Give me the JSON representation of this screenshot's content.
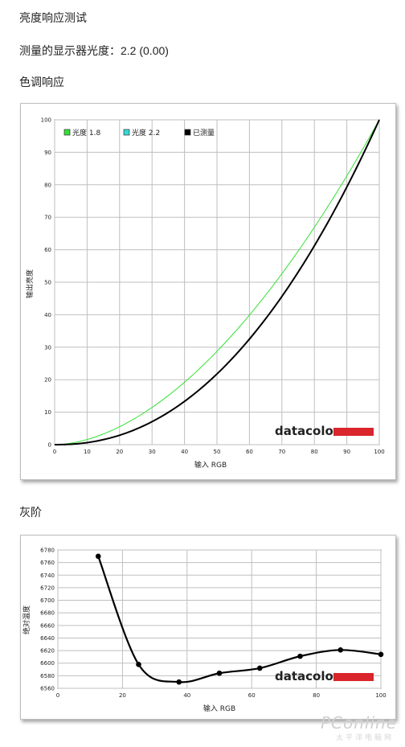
{
  "texts": {
    "title": "亮度响应测试",
    "measured_gamma": "测量的显示器光度：2.2 (0.00)",
    "tone_section": "色调响应",
    "gray_section": "灰阶"
  },
  "logo": {
    "text": "datacolor",
    "bar_color": "#d9252b"
  },
  "watermark": {
    "main": "PConline",
    "sub": "太平洋电脑网"
  },
  "chart_data": [
    {
      "type": "line",
      "xlabel": "输入 RGB",
      "ylabel": "输出亮度",
      "xlim": [
        0,
        100
      ],
      "ylim": [
        0,
        100
      ],
      "x_ticks": [
        0,
        10,
        20,
        30,
        40,
        50,
        60,
        70,
        80,
        90,
        100
      ],
      "y_ticks": [
        0,
        10,
        20,
        30,
        40,
        50,
        60,
        70,
        80,
        90,
        100
      ],
      "grid": true,
      "legend_position": "top-left",
      "series": [
        {
          "name": "光度 1.8",
          "color": "#35e035",
          "gamma": 1.8
        },
        {
          "name": "光度 2.2",
          "color": "#38d8d8",
          "gamma": 2.2
        },
        {
          "name": "已测量",
          "color": "#000000",
          "gamma": 2.2
        }
      ]
    },
    {
      "type": "line",
      "xlabel": "输入 RGB",
      "ylabel": "绝对温度",
      "xlim": [
        0,
        100
      ],
      "ylim": [
        6560,
        6780
      ],
      "x_ticks": [
        0,
        20,
        40,
        60,
        80,
        100
      ],
      "y_ticks": [
        6560,
        6580,
        6600,
        6620,
        6640,
        6660,
        6680,
        6700,
        6720,
        6740,
        6760,
        6780
      ],
      "grid": true,
      "series": [
        {
          "color": "#000000",
          "x": [
            12.5,
            25,
            37.5,
            50,
            62.5,
            75,
            87.5,
            100
          ],
          "y": [
            6770,
            6598,
            6570,
            6584,
            6592,
            6611,
            6621,
            6614
          ]
        }
      ]
    }
  ]
}
